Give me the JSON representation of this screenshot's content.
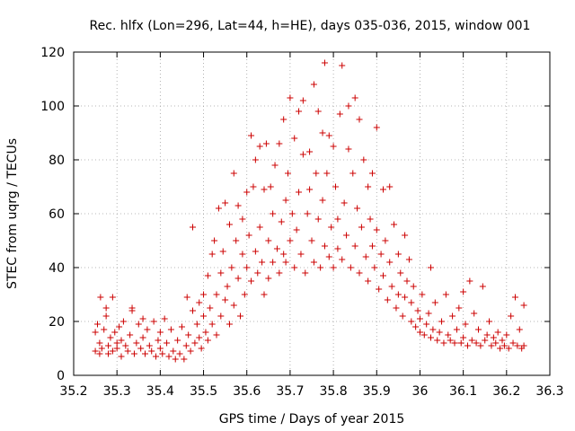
{
  "chart_data": {
    "type": "scatter",
    "title": "Rec. hlfx (Lon=296, Lat=44, h=HE), days 035-036, 2015, window 001",
    "xlabel": "GPS time / Days of year 2015",
    "ylabel": "STEC from uqrg / TECUs",
    "xlim": [
      35.2,
      36.3
    ],
    "ylim": [
      0,
      120
    ],
    "xticks": [
      35.2,
      35.3,
      35.4,
      35.5,
      35.6,
      35.7,
      35.8,
      35.9,
      36.0,
      36.1,
      36.2,
      36.3
    ],
    "xtick_labels": [
      "35.2",
      "35.3",
      "35.4",
      "35.5",
      "35.6",
      "35.7",
      "35.8",
      "35.9",
      "36",
      "36.1",
      "36.2",
      "36.3"
    ],
    "yticks": [
      0,
      20,
      40,
      60,
      80,
      100,
      120
    ],
    "ytick_labels": [
      "0",
      "20",
      "40",
      "60",
      "80",
      "100",
      "120"
    ],
    "grid": true,
    "marker": "plus",
    "color": "#cc0000",
    "points": [
      [
        35.25,
        9
      ],
      [
        35.25,
        16
      ],
      [
        35.255,
        19
      ],
      [
        35.26,
        8
      ],
      [
        35.26,
        12
      ],
      [
        35.262,
        29
      ],
      [
        35.265,
        10
      ],
      [
        35.27,
        17
      ],
      [
        35.275,
        22
      ],
      [
        35.275,
        25
      ],
      [
        35.28,
        8
      ],
      [
        35.28,
        11
      ],
      [
        35.285,
        14
      ],
      [
        35.29,
        9
      ],
      [
        35.29,
        29
      ],
      [
        35.295,
        16
      ],
      [
        35.3,
        12
      ],
      [
        35.3,
        10
      ],
      [
        35.305,
        18
      ],
      [
        35.31,
        7
      ],
      [
        35.31,
        13
      ],
      [
        35.315,
        20
      ],
      [
        35.32,
        11
      ],
      [
        35.325,
        9
      ],
      [
        35.33,
        15
      ],
      [
        35.335,
        25
      ],
      [
        35.335,
        24
      ],
      [
        35.34,
        8
      ],
      [
        35.345,
        12
      ],
      [
        35.35,
        19
      ],
      [
        35.355,
        10
      ],
      [
        35.36,
        14
      ],
      [
        35.36,
        21
      ],
      [
        35.365,
        8
      ],
      [
        35.37,
        17
      ],
      [
        35.375,
        11
      ],
      [
        35.38,
        9
      ],
      [
        35.385,
        20
      ],
      [
        35.39,
        7
      ],
      [
        35.395,
        13
      ],
      [
        35.4,
        10
      ],
      [
        35.4,
        16
      ],
      [
        35.405,
        8
      ],
      [
        35.41,
        21
      ],
      [
        35.415,
        12
      ],
      [
        35.42,
        7
      ],
      [
        35.425,
        17
      ],
      [
        35.43,
        9
      ],
      [
        35.435,
        6
      ],
      [
        35.44,
        13
      ],
      [
        35.445,
        8
      ],
      [
        35.45,
        18
      ],
      [
        35.455,
        6
      ],
      [
        35.46,
        11
      ],
      [
        35.462,
        29
      ],
      [
        35.465,
        15
      ],
      [
        35.47,
        9
      ],
      [
        35.475,
        24
      ],
      [
        35.475,
        55
      ],
      [
        35.48,
        12
      ],
      [
        35.485,
        19
      ],
      [
        35.49,
        27
      ],
      [
        35.49,
        14
      ],
      [
        35.495,
        10
      ],
      [
        35.5,
        22
      ],
      [
        35.5,
        30
      ],
      [
        35.505,
        16
      ],
      [
        35.51,
        37
      ],
      [
        35.51,
        13
      ],
      [
        35.515,
        25
      ],
      [
        35.52,
        45
      ],
      [
        35.52,
        19
      ],
      [
        35.525,
        50
      ],
      [
        35.53,
        30
      ],
      [
        35.53,
        15
      ],
      [
        35.535,
        62
      ],
      [
        35.54,
        38
      ],
      [
        35.54,
        22
      ],
      [
        35.545,
        46
      ],
      [
        35.55,
        64
      ],
      [
        35.55,
        28
      ],
      [
        35.555,
        33
      ],
      [
        35.56,
        56
      ],
      [
        35.56,
        19
      ],
      [
        35.565,
        40
      ],
      [
        35.57,
        75
      ],
      [
        35.57,
        26
      ],
      [
        35.575,
        50
      ],
      [
        35.58,
        36
      ],
      [
        35.58,
        63
      ],
      [
        35.585,
        22
      ],
      [
        35.59,
        45
      ],
      [
        35.59,
        58
      ],
      [
        35.595,
        30
      ],
      [
        35.6,
        68
      ],
      [
        35.6,
        40
      ],
      [
        35.605,
        52
      ],
      [
        35.61,
        89
      ],
      [
        35.61,
        35
      ],
      [
        35.615,
        70
      ],
      [
        35.62,
        46
      ],
      [
        35.62,
        80
      ],
      [
        35.625,
        38
      ],
      [
        35.63,
        85
      ],
      [
        35.63,
        55
      ],
      [
        35.635,
        42
      ],
      [
        35.64,
        69
      ],
      [
        35.64,
        30
      ],
      [
        35.645,
        86
      ],
      [
        35.65,
        50
      ],
      [
        35.65,
        36
      ],
      [
        35.655,
        70
      ],
      [
        35.66,
        60
      ],
      [
        35.66,
        42
      ],
      [
        35.665,
        78
      ],
      [
        35.67,
        47
      ],
      [
        35.675,
        86
      ],
      [
        35.675,
        38
      ],
      [
        35.68,
        57
      ],
      [
        35.685,
        95
      ],
      [
        35.685,
        45
      ],
      [
        35.69,
        65
      ],
      [
        35.69,
        42
      ],
      [
        35.695,
        75
      ],
      [
        35.7,
        103
      ],
      [
        35.7,
        50
      ],
      [
        35.705,
        60
      ],
      [
        35.71,
        88
      ],
      [
        35.71,
        40
      ],
      [
        35.715,
        54
      ],
      [
        35.72,
        98
      ],
      [
        35.72,
        68
      ],
      [
        35.725,
        45
      ],
      [
        35.73,
        82
      ],
      [
        35.73,
        102
      ],
      [
        35.735,
        38
      ],
      [
        35.74,
        60
      ],
      [
        35.745,
        69
      ],
      [
        35.745,
        83
      ],
      [
        35.75,
        50
      ],
      [
        35.755,
        108
      ],
      [
        35.755,
        42
      ],
      [
        35.76,
        75
      ],
      [
        35.765,
        98
      ],
      [
        35.765,
        58
      ],
      [
        35.77,
        40
      ],
      [
        35.775,
        90
      ],
      [
        35.775,
        65
      ],
      [
        35.78,
        116
      ],
      [
        35.78,
        48
      ],
      [
        35.785,
        75
      ],
      [
        35.79,
        89
      ],
      [
        35.79,
        44
      ],
      [
        35.795,
        55
      ],
      [
        35.8,
        85
      ],
      [
        35.8,
        40
      ],
      [
        35.805,
        70
      ],
      [
        35.81,
        58
      ],
      [
        35.81,
        47
      ],
      [
        35.815,
        97
      ],
      [
        35.82,
        115
      ],
      [
        35.82,
        43
      ],
      [
        35.825,
        64
      ],
      [
        35.83,
        52
      ],
      [
        35.835,
        84
      ],
      [
        35.835,
        100
      ],
      [
        35.84,
        40
      ],
      [
        35.845,
        75
      ],
      [
        35.85,
        103
      ],
      [
        35.85,
        48
      ],
      [
        35.855,
        62
      ],
      [
        35.86,
        95
      ],
      [
        35.86,
        38
      ],
      [
        35.865,
        55
      ],
      [
        35.87,
        80
      ],
      [
        35.875,
        44
      ],
      [
        35.88,
        70
      ],
      [
        35.88,
        35
      ],
      [
        35.885,
        58
      ],
      [
        35.89,
        48
      ],
      [
        35.89,
        75
      ],
      [
        35.895,
        40
      ],
      [
        35.9,
        92
      ],
      [
        35.9,
        54
      ],
      [
        35.905,
        32
      ],
      [
        35.91,
        45
      ],
      [
        35.915,
        69
      ],
      [
        35.915,
        37
      ],
      [
        35.92,
        50
      ],
      [
        35.925,
        28
      ],
      [
        35.93,
        70
      ],
      [
        35.93,
        42
      ],
      [
        35.935,
        33
      ],
      [
        35.94,
        56
      ],
      [
        35.945,
        25
      ],
      [
        35.95,
        45
      ],
      [
        35.95,
        30
      ],
      [
        35.955,
        38
      ],
      [
        35.96,
        22
      ],
      [
        35.965,
        52
      ],
      [
        35.965,
        29
      ],
      [
        35.97,
        35
      ],
      [
        35.975,
        43
      ],
      [
        35.98,
        20
      ],
      [
        35.98,
        27
      ],
      [
        35.985,
        33
      ],
      [
        35.99,
        18
      ],
      [
        35.995,
        24
      ],
      [
        36.0,
        16
      ],
      [
        36.0,
        21
      ],
      [
        36.005,
        30
      ],
      [
        36.01,
        15
      ],
      [
        36.015,
        19
      ],
      [
        36.02,
        23
      ],
      [
        36.025,
        14
      ],
      [
        36.025,
        40
      ],
      [
        36.03,
        17
      ],
      [
        36.035,
        27
      ],
      [
        36.04,
        13
      ],
      [
        36.045,
        16
      ],
      [
        36.05,
        20
      ],
      [
        36.055,
        12
      ],
      [
        36.06,
        30
      ],
      [
        36.065,
        15
      ],
      [
        36.07,
        13
      ],
      [
        36.075,
        22
      ],
      [
        36.08,
        12
      ],
      [
        36.085,
        17
      ],
      [
        36.09,
        25
      ],
      [
        36.095,
        12
      ],
      [
        36.1,
        14
      ],
      [
        36.1,
        31
      ],
      [
        36.105,
        19
      ],
      [
        36.11,
        11
      ],
      [
        36.115,
        35
      ],
      [
        36.12,
        13
      ],
      [
        36.125,
        23
      ],
      [
        36.13,
        12
      ],
      [
        36.135,
        17
      ],
      [
        36.14,
        11
      ],
      [
        36.145,
        33
      ],
      [
        36.15,
        13
      ],
      [
        36.155,
        15
      ],
      [
        36.16,
        20
      ],
      [
        36.165,
        11
      ],
      [
        36.17,
        14
      ],
      [
        36.175,
        12
      ],
      [
        36.18,
        16
      ],
      [
        36.185,
        10
      ],
      [
        36.19,
        13
      ],
      [
        36.195,
        11
      ],
      [
        36.2,
        15
      ],
      [
        36.205,
        10
      ],
      [
        36.21,
        22
      ],
      [
        36.215,
        12
      ],
      [
        36.22,
        29
      ],
      [
        36.225,
        11
      ],
      [
        36.23,
        17
      ],
      [
        36.235,
        10
      ],
      [
        36.24,
        26
      ],
      [
        36.24,
        11
      ]
    ]
  }
}
